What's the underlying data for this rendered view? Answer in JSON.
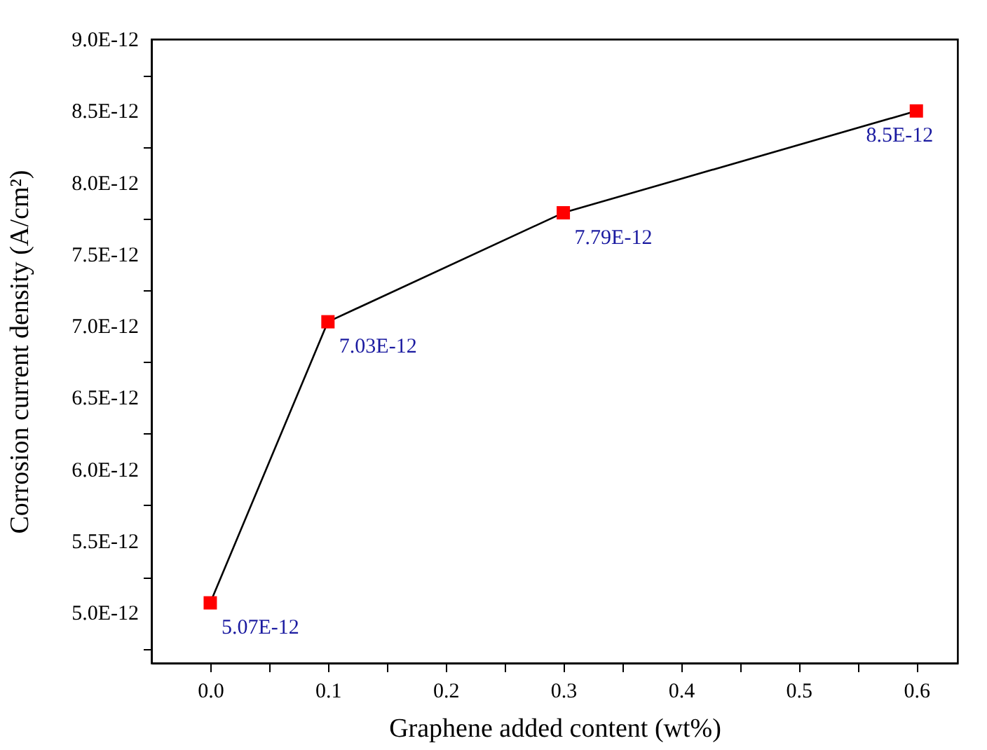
{
  "chart_data": {
    "type": "line",
    "xlabel": "Graphene added content (wt%)",
    "ylabel": "Corrosion current density (A/cm²)",
    "x": [
      0.0,
      0.1,
      0.3,
      0.6
    ],
    "series": [
      {
        "color": "#ff0000",
        "values": [
          5.07e-12,
          7.03e-12,
          7.79e-12,
          8.5e-12
        ],
        "value_labels": [
          "5.07E-12",
          "7.03E-12",
          "7.79E-12",
          "8.5E-12"
        ]
      }
    ],
    "xlim": [
      -0.05,
      0.635
    ],
    "xticks": [
      {
        "value": 0.0,
        "label": "0.0"
      },
      {
        "value": 0.05,
        "label": null
      },
      {
        "value": 0.1,
        "label": "0.1"
      },
      {
        "value": 0.15,
        "label": null
      },
      {
        "value": 0.2,
        "label": "0.2"
      },
      {
        "value": 0.25,
        "label": null
      },
      {
        "value": 0.3,
        "label": "0.3"
      },
      {
        "value": 0.35,
        "label": null
      },
      {
        "value": 0.4,
        "label": "0.4"
      },
      {
        "value": 0.45,
        "label": null
      },
      {
        "value": 0.5,
        "label": "0.5"
      },
      {
        "value": 0.55,
        "label": null
      },
      {
        "value": 0.6,
        "label": "0.6"
      }
    ],
    "ylim": [
      4.65e-12,
      9e-12
    ],
    "yticks": [
      {
        "value": 4.75e-12,
        "label": null
      },
      {
        "value": 5e-12,
        "label": "5.0E-12"
      },
      {
        "value": 5.25e-12,
        "label": null
      },
      {
        "value": 5.5e-12,
        "label": "5.5E-12"
      },
      {
        "value": 5.75e-12,
        "label": null
      },
      {
        "value": 6e-12,
        "label": "6.0E-12"
      },
      {
        "value": 6.25e-12,
        "label": null
      },
      {
        "value": 6.5e-12,
        "label": "6.5E-12"
      },
      {
        "value": 6.75e-12,
        "label": null
      },
      {
        "value": 7e-12,
        "label": "7.0E-12"
      },
      {
        "value": 7.25e-12,
        "label": null
      },
      {
        "value": 7.5e-12,
        "label": "7.5E-12"
      },
      {
        "value": 7.75e-12,
        "label": null
      },
      {
        "value": 8e-12,
        "label": "8.0E-12"
      },
      {
        "value": 8.25e-12,
        "label": null
      },
      {
        "value": 8.5e-12,
        "label": "8.5E-12"
      },
      {
        "value": 8.75e-12,
        "label": null
      },
      {
        "value": 9e-12,
        "label": "9.0E-12"
      }
    ],
    "marker": "square",
    "line_style": "solid",
    "grid": false
  }
}
